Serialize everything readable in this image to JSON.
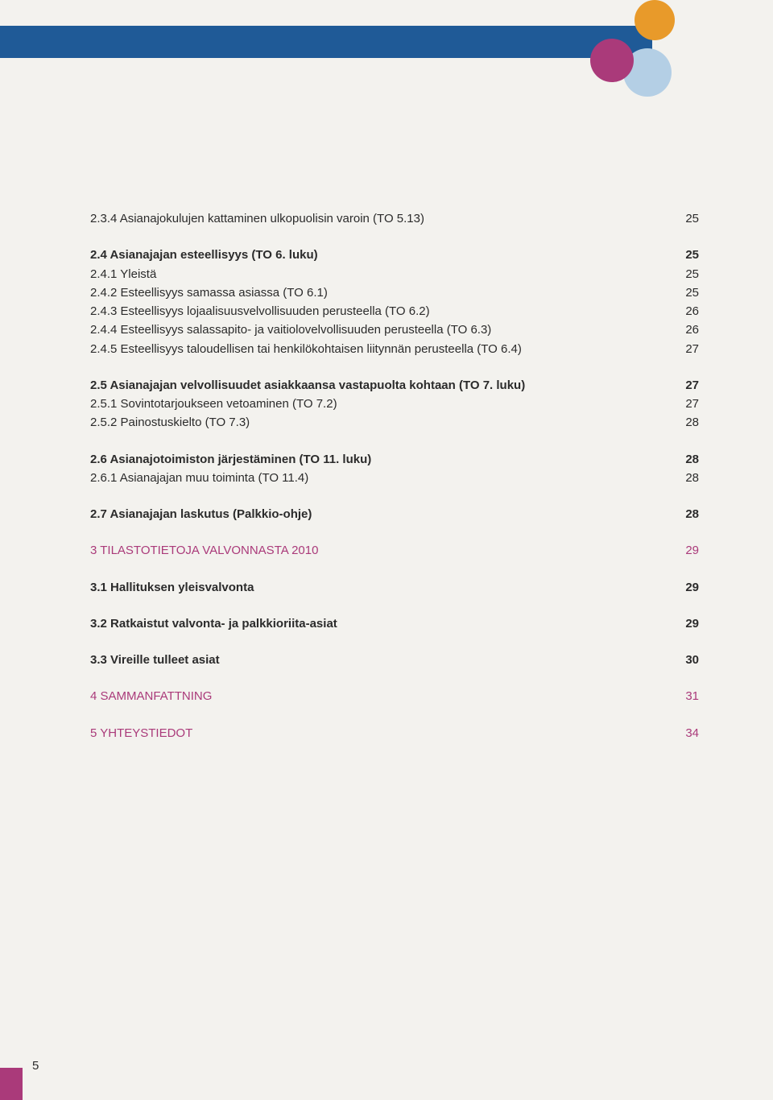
{
  "colors": {
    "background": "#f3f2ee",
    "header_bar": "#1f5a97",
    "circle_orange": "#e89a2a",
    "circle_purple": "#aa3a7a",
    "circle_blue_light": "#b4cfe5",
    "text": "#2b2b2b",
    "accent": "#aa3a7a",
    "footer_tab": "#aa3a7a"
  },
  "page_number": "5",
  "toc_groups": [
    {
      "rows": [
        {
          "title": "2.3.4 Asianajokulujen kattaminen ulkopuolisin varoin (TO 5.13)",
          "page": "25",
          "bold": false,
          "accent": false
        }
      ]
    },
    {
      "rows": [
        {
          "title": "2.4 Asianajajan esteellisyys (TO 6. luku)",
          "page": "25",
          "bold": true,
          "accent": false
        },
        {
          "title": "2.4.1 Yleistä",
          "page": "25",
          "bold": false,
          "accent": false
        },
        {
          "title": "2.4.2 Esteellisyys samassa asiassa (TO 6.1)",
          "page": "25",
          "bold": false,
          "accent": false
        },
        {
          "title": "2.4.3 Esteellisyys lojaalisuusvelvollisuuden perusteella (TO 6.2)",
          "page": "26",
          "bold": false,
          "accent": false
        },
        {
          "title": "2.4.4 Esteellisyys salassapito- ja vaitiolovelvollisuuden perusteella (TO 6.3)",
          "page": "26",
          "bold": false,
          "accent": false
        },
        {
          "title": "2.4.5 Esteellisyys taloudellisen tai henkilökohtaisen liitynnän perusteella (TO 6.4)",
          "page": "27",
          "bold": false,
          "accent": false
        }
      ]
    },
    {
      "rows": [
        {
          "title": "2.5 Asianajajan velvollisuudet asiakkaansa vastapuolta kohtaan (TO 7. luku)",
          "page": "27",
          "bold": true,
          "accent": false
        },
        {
          "title": "2.5.1 Sovintotarjoukseen vetoaminen (TO 7.2)",
          "page": "27",
          "bold": false,
          "accent": false
        },
        {
          "title": "2.5.2 Painostuskielto (TO 7.3)",
          "page": "28",
          "bold": false,
          "accent": false
        }
      ]
    },
    {
      "rows": [
        {
          "title": "2.6 Asianajotoimiston järjestäminen (TO 11. luku)",
          "page": "28",
          "bold": true,
          "accent": false
        },
        {
          "title": "2.6.1 Asianajajan muu toiminta (TO 11.4)",
          "page": "28",
          "bold": false,
          "accent": false
        }
      ]
    },
    {
      "rows": [
        {
          "title": "2.7 Asianajajan laskutus (Palkkio-ohje)",
          "page": "28",
          "bold": true,
          "accent": false
        }
      ]
    },
    {
      "rows": [
        {
          "title": "3 TILASTOTIETOJA VALVONNASTA 2010",
          "page": "29",
          "bold": false,
          "accent": true
        }
      ]
    },
    {
      "rows": [
        {
          "title": "3.1 Hallituksen yleisvalvonta",
          "page": "29",
          "bold": true,
          "accent": false
        }
      ]
    },
    {
      "rows": [
        {
          "title": "3.2 Ratkaistut valvonta- ja palkkioriita-asiat",
          "page": "29",
          "bold": true,
          "accent": false
        }
      ]
    },
    {
      "rows": [
        {
          "title": "3.3 Vireille tulleet asiat",
          "page": "30",
          "bold": true,
          "accent": false
        }
      ]
    },
    {
      "rows": [
        {
          "title": "4 SAMMANFATTNING",
          "page": "31",
          "bold": false,
          "accent": true
        }
      ]
    },
    {
      "rows": [
        {
          "title": "5 YHTEYSTIEDOT",
          "page": "34",
          "bold": false,
          "accent": true
        }
      ]
    }
  ]
}
